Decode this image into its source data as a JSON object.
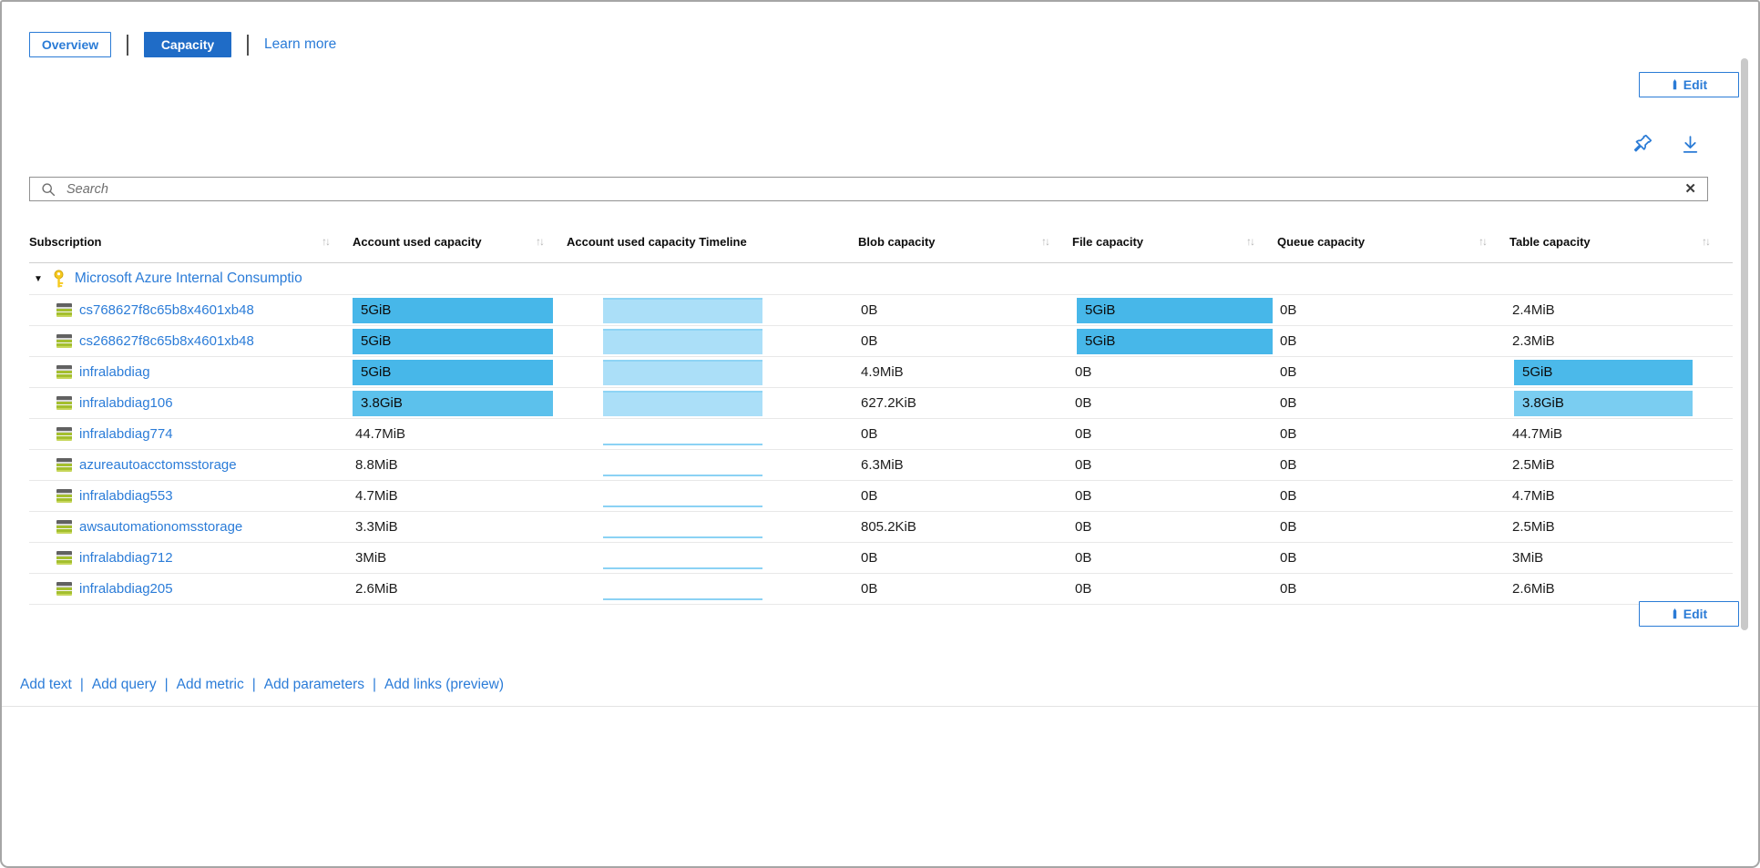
{
  "toolbar": {
    "overview_label": "Overview",
    "capacity_label": "Capacity",
    "learn_more_label": "Learn more",
    "edit_label": "Edit"
  },
  "search": {
    "placeholder": "Search",
    "clear_glyph": "✕"
  },
  "icons": {
    "sort_glyph": "↑↓",
    "expander_glyph": "▼"
  },
  "table": {
    "columns": [
      {
        "label": "Subscription",
        "sort": true
      },
      {
        "label": "Account used capacity",
        "sort": true
      },
      {
        "label": "Account used capacity Timeline",
        "sort": false
      },
      {
        "label": "Blob capacity",
        "sort": true
      },
      {
        "label": "File capacity",
        "sort": true
      },
      {
        "label": "Queue capacity",
        "sort": true
      },
      {
        "label": "Table capacity",
        "sort": true
      }
    ],
    "group_label": "Microsoft Azure Internal Consumptio",
    "rows": [
      {
        "name": "cs768627f8c65b8x4601xb48",
        "account": "5GiB",
        "account_heat": "#47b7e9",
        "timeline": "bar",
        "blob": "0B",
        "file": "5GiB",
        "file_heat": "#47b7e9",
        "queue": "0B",
        "table": "2.4MiB",
        "table_heat": null
      },
      {
        "name": "cs268627f8c65b8x4601xb48",
        "account": "5GiB",
        "account_heat": "#47b7e9",
        "timeline": "bar",
        "blob": "0B",
        "file": "5GiB",
        "file_heat": "#47b7e9",
        "queue": "0B",
        "table": "2.3MiB",
        "table_heat": null
      },
      {
        "name": "infralabdiag",
        "account": "5GiB",
        "account_heat": "#47b7e9",
        "timeline": "bar",
        "blob": "4.9MiB",
        "file": "0B",
        "file_heat": null,
        "queue": "0B",
        "table": "5GiB",
        "table_heat": "#4bb9ea"
      },
      {
        "name": "infralabdiag106",
        "account": "3.8GiB",
        "account_heat": "#5cc1ec",
        "timeline": "bar",
        "blob": "627.2KiB",
        "file": "0B",
        "file_heat": null,
        "queue": "0B",
        "table": "3.8GiB",
        "table_heat": "#7acdf1"
      },
      {
        "name": "infralabdiag774",
        "account": "44.7MiB",
        "account_heat": null,
        "timeline": "line",
        "blob": "0B",
        "file": "0B",
        "file_heat": null,
        "queue": "0B",
        "table": "44.7MiB",
        "table_heat": null
      },
      {
        "name": "azureautoacctomsstorage",
        "account": "8.8MiB",
        "account_heat": null,
        "timeline": "line",
        "blob": "6.3MiB",
        "file": "0B",
        "file_heat": null,
        "queue": "0B",
        "table": "2.5MiB",
        "table_heat": null
      },
      {
        "name": "infralabdiag553",
        "account": "4.7MiB",
        "account_heat": null,
        "timeline": "line",
        "blob": "0B",
        "file": "0B",
        "file_heat": null,
        "queue": "0B",
        "table": "4.7MiB",
        "table_heat": null
      },
      {
        "name": "awsautomationomsstorage",
        "account": "3.3MiB",
        "account_heat": null,
        "timeline": "line",
        "blob": "805.2KiB",
        "file": "0B",
        "file_heat": null,
        "queue": "0B",
        "table": "2.5MiB",
        "table_heat": null
      },
      {
        "name": "infralabdiag712",
        "account": "3MiB",
        "account_heat": null,
        "timeline": "line",
        "blob": "0B",
        "file": "0B",
        "file_heat": null,
        "queue": "0B",
        "table": "3MiB",
        "table_heat": null
      },
      {
        "name": "infralabdiag205",
        "account": "2.6MiB",
        "account_heat": null,
        "timeline": "line",
        "blob": "0B",
        "file": "0B",
        "file_heat": null,
        "queue": "0B",
        "table": "2.6MiB",
        "table_heat": null
      }
    ]
  },
  "footer": {
    "links": [
      "Add text",
      "Add query",
      "Add metric",
      "Add parameters",
      "Add links (preview)"
    ],
    "edit_label": "Edit"
  },
  "colors": {
    "accent_blue": "#2a7bd6",
    "button_fill_blue": "#1f6cc7",
    "link_blue": "#2b7cd8",
    "bar_strong": "#47b7e9",
    "bar_light": "#7acdf1",
    "timeline_fill": "#abdff8",
    "timeline_line": "#8bd2f4",
    "key_yellow": "#f6c91e"
  }
}
